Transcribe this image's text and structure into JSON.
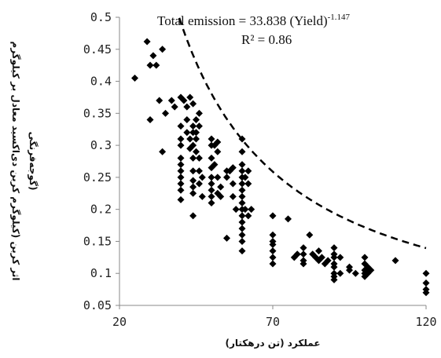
{
  "chart_data": {
    "type": "scatter",
    "xlabel": "عملکرد (تن درهکتار)",
    "ylabel_line1": "اثر کربن (کیلوگرم کربن دی‌اکسید معادل بر کیلوگرم",
    "ylabel_line2": "گوجه‌فرنگی)",
    "xlim": [
      20,
      120
    ],
    "ylim": [
      0.05,
      0.5
    ],
    "x_ticks": [
      20,
      70,
      120
    ],
    "y_ticks": [
      0.05,
      0.1,
      0.15,
      0.2,
      0.25,
      0.3,
      0.35,
      0.4,
      0.45,
      0.5
    ],
    "x_tick_labels": [
      "20",
      "70",
      "120"
    ],
    "y_tick_labels": [
      "0.05",
      "0.1",
      "0.15",
      "0.2",
      "0.25",
      "0.3",
      "0.35",
      "0.4",
      "0.45",
      "0.5"
    ],
    "grid": false,
    "trendline": {
      "type": "power",
      "coefficient": 33.838,
      "exponent": -1.147,
      "style": "dashed",
      "equation_prefix": "Total emission = 33.838 (Yield)",
      "equation_exponent": "-1.147",
      "r2_label": "R² = 0.86"
    },
    "marker": "diamond",
    "marker_color": "#000000",
    "points": [
      [
        25,
        0.405
      ],
      [
        29,
        0.462
      ],
      [
        30,
        0.425
      ],
      [
        31,
        0.44
      ],
      [
        32,
        0.425
      ],
      [
        34,
        0.45
      ],
      [
        30,
        0.34
      ],
      [
        33,
        0.37
      ],
      [
        35,
        0.35
      ],
      [
        34,
        0.29
      ],
      [
        37,
        0.37
      ],
      [
        38,
        0.36
      ],
      [
        40,
        0.375
      ],
      [
        41,
        0.37
      ],
      [
        42,
        0.36
      ],
      [
        43,
        0.375
      ],
      [
        44,
        0.365
      ],
      [
        45,
        0.34
      ],
      [
        46,
        0.35
      ],
      [
        40,
        0.33
      ],
      [
        40,
        0.31
      ],
      [
        40,
        0.3
      ],
      [
        40,
        0.28
      ],
      [
        40,
        0.27
      ],
      [
        40,
        0.26
      ],
      [
        40,
        0.25
      ],
      [
        40,
        0.24
      ],
      [
        40,
        0.23
      ],
      [
        40,
        0.215
      ],
      [
        42,
        0.34
      ],
      [
        42,
        0.32
      ],
      [
        43,
        0.31
      ],
      [
        43,
        0.295
      ],
      [
        44,
        0.33
      ],
      [
        44,
        0.32
      ],
      [
        44,
        0.3
      ],
      [
        44,
        0.28
      ],
      [
        44,
        0.26
      ],
      [
        44,
        0.245
      ],
      [
        44,
        0.235
      ],
      [
        44,
        0.225
      ],
      [
        44,
        0.19
      ],
      [
        45,
        0.32
      ],
      [
        45,
        0.31
      ],
      [
        45,
        0.29
      ],
      [
        46,
        0.33
      ],
      [
        46,
        0.28
      ],
      [
        46,
        0.26
      ],
      [
        46,
        0.24
      ],
      [
        47,
        0.25
      ],
      [
        47,
        0.22
      ],
      [
        50,
        0.31
      ],
      [
        50,
        0.3
      ],
      [
        50,
        0.28
      ],
      [
        50,
        0.265
      ],
      [
        50,
        0.25
      ],
      [
        50,
        0.24
      ],
      [
        50,
        0.23
      ],
      [
        50,
        0.22
      ],
      [
        50,
        0.21
      ],
      [
        51,
        0.3
      ],
      [
        51,
        0.27
      ],
      [
        52,
        0.305
      ],
      [
        52,
        0.29
      ],
      [
        52,
        0.25
      ],
      [
        52,
        0.225
      ],
      [
        53,
        0.235
      ],
      [
        53,
        0.22
      ],
      [
        55,
        0.26
      ],
      [
        55,
        0.25
      ],
      [
        55,
        0.155
      ],
      [
        56,
        0.26
      ],
      [
        57,
        0.24
      ],
      [
        57,
        0.22
      ],
      [
        58,
        0.2
      ],
      [
        57,
        0.265
      ],
      [
        60,
        0.31
      ],
      [
        60,
        0.29
      ],
      [
        60,
        0.27
      ],
      [
        60,
        0.26
      ],
      [
        60,
        0.25
      ],
      [
        60,
        0.24
      ],
      [
        60,
        0.23
      ],
      [
        60,
        0.22
      ],
      [
        60,
        0.21
      ],
      [
        60,
        0.2
      ],
      [
        60,
        0.19
      ],
      [
        60,
        0.18
      ],
      [
        60,
        0.17
      ],
      [
        60,
        0.16
      ],
      [
        60,
        0.15
      ],
      [
        60,
        0.135
      ],
      [
        61,
        0.25
      ],
      [
        61,
        0.2
      ],
      [
        62,
        0.26
      ],
      [
        62,
        0.24
      ],
      [
        62,
        0.19
      ],
      [
        63,
        0.2
      ],
      [
        70,
        0.19
      ],
      [
        70,
        0.16
      ],
      [
        70,
        0.15
      ],
      [
        70,
        0.145
      ],
      [
        70,
        0.135
      ],
      [
        70,
        0.125
      ],
      [
        70,
        0.115
      ],
      [
        75,
        0.185
      ],
      [
        77,
        0.125
      ],
      [
        78,
        0.13
      ],
      [
        80,
        0.14
      ],
      [
        80,
        0.13
      ],
      [
        80,
        0.12
      ],
      [
        80,
        0.115
      ],
      [
        82,
        0.16
      ],
      [
        83,
        0.13
      ],
      [
        84,
        0.125
      ],
      [
        85,
        0.135
      ],
      [
        85,
        0.12
      ],
      [
        86,
        0.125
      ],
      [
        87,
        0.115
      ],
      [
        88,
        0.12
      ],
      [
        90,
        0.14
      ],
      [
        90,
        0.13
      ],
      [
        90,
        0.125
      ],
      [
        90,
        0.115
      ],
      [
        90,
        0.11
      ],
      [
        90,
        0.1
      ],
      [
        90,
        0.095
      ],
      [
        90,
        0.09
      ],
      [
        92,
        0.125
      ],
      [
        92,
        0.1
      ],
      [
        95,
        0.11
      ],
      [
        95,
        0.105
      ],
      [
        97,
        0.1
      ],
      [
        100,
        0.125
      ],
      [
        100,
        0.115
      ],
      [
        100,
        0.105
      ],
      [
        100,
        0.1
      ],
      [
        100,
        0.095
      ],
      [
        101,
        0.11
      ],
      [
        101,
        0.1
      ],
      [
        102,
        0.105
      ],
      [
        110,
        0.12
      ],
      [
        120,
        0.1
      ],
      [
        120,
        0.085
      ],
      [
        120,
        0.075
      ],
      [
        120,
        0.07
      ]
    ]
  }
}
